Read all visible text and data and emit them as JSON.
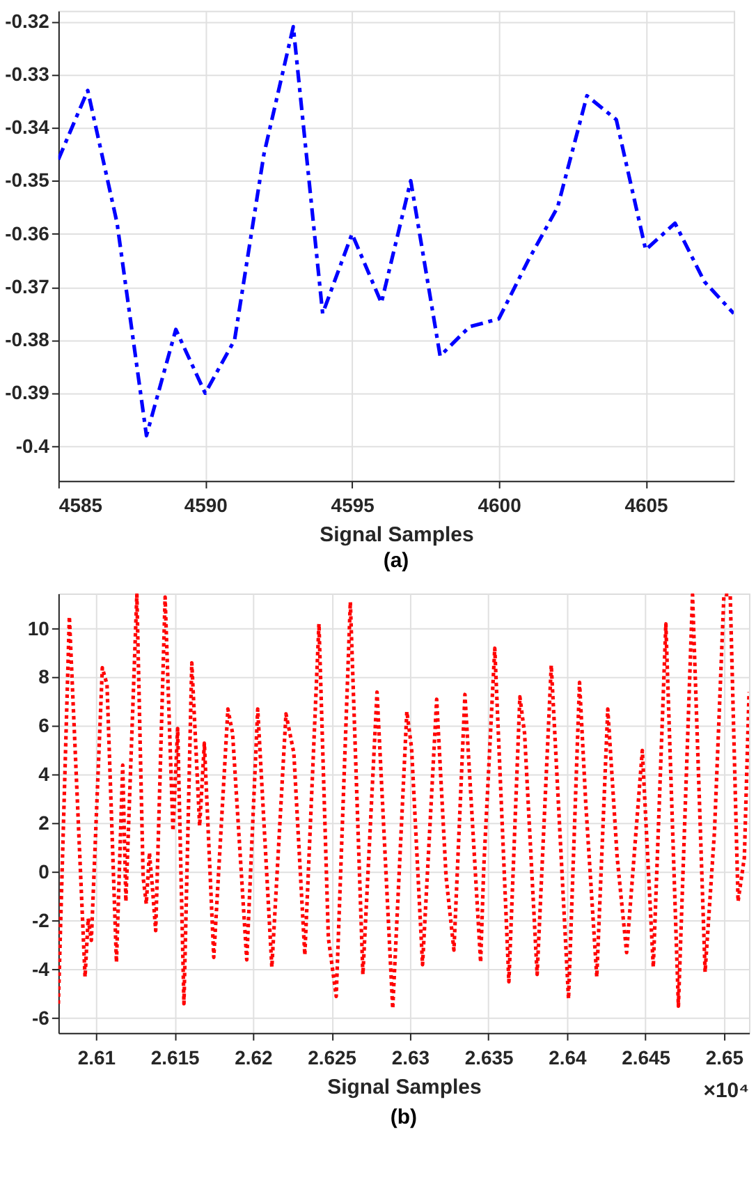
{
  "chart_data": [
    {
      "type": "line",
      "title": "(a)",
      "xlabel": "Signal Samples",
      "x": [
        4585,
        4586,
        4587,
        4588,
        4589,
        4590,
        4591,
        4592,
        4593,
        4594,
        4595,
        4596,
        4597,
        4598,
        4599,
        4600,
        4601,
        4602,
        4603,
        4604,
        4605,
        4606,
        4607,
        4608
      ],
      "series": [
        {
          "color": "#0000ff",
          "line_style": "dashed",
          "values": [
            -0.346,
            -0.333,
            -0.358,
            -0.398,
            -0.378,
            -0.39,
            -0.38,
            -0.345,
            -0.321,
            -0.375,
            -0.36,
            -0.373,
            -0.35,
            -0.383,
            -0.3775,
            -0.376,
            -0.365,
            -0.355,
            -0.334,
            -0.3385,
            -0.363,
            -0.358,
            -0.369,
            -0.375
          ]
        }
      ],
      "xlim": [
        4585,
        4608
      ],
      "ylim": [
        -0.4065,
        -0.318
      ],
      "xticks": [
        4585,
        4590,
        4595,
        4600,
        4605
      ],
      "yticks": [
        -0.4,
        -0.39,
        -0.38,
        -0.37,
        -0.36,
        -0.35,
        -0.34,
        -0.33,
        -0.32
      ],
      "grid": true,
      "marker": "none"
    },
    {
      "type": "line",
      "title": "(b)",
      "xlabel": "Signal Samples",
      "annotations": [
        "×10⁴"
      ],
      "x": [
        2.6076,
        2.6083,
        2.6093,
        2.6095,
        2.6097,
        2.6104,
        2.6107,
        2.6113,
        2.6117,
        2.6119,
        2.6126,
        2.613,
        2.6132,
        2.6134,
        2.6136,
        2.6138,
        2.6144,
        2.6149,
        2.6152,
        2.6156,
        2.6161,
        2.6166,
        2.6169,
        2.6175,
        2.6184,
        2.6187,
        2.6196,
        2.6203,
        2.6212,
        2.6221,
        2.6226,
        2.6233,
        2.6242,
        2.6248,
        2.6253,
        2.6262,
        2.627,
        2.6279,
        2.6289,
        2.6298,
        2.6301,
        2.6308,
        2.6317,
        2.6323,
        2.6328,
        2.6335,
        2.6345,
        2.6347,
        2.6354,
        2.6363,
        2.637,
        2.6373,
        2.6381,
        2.639,
        2.6401,
        2.6408,
        2.6412,
        2.6419,
        2.6426,
        2.6432,
        2.6438,
        2.6448,
        2.6455,
        2.6463,
        2.6471,
        2.648,
        2.6488,
        2.6494,
        2.65,
        2.6504,
        2.6509,
        2.6513,
        2.6516
      ],
      "series": [
        {
          "color": "#ff0000",
          "line_style": "dotted",
          "values": [
            -5.4,
            10.5,
            -4.3,
            -1.9,
            -2.8,
            8.4,
            7.7,
            -3.7,
            4.4,
            -1.2,
            11.4,
            -0.2,
            -1.3,
            0.8,
            -0.7,
            -2.4,
            11.3,
            1.7,
            5.9,
            -5.4,
            8.6,
            1.9,
            5.3,
            -3.5,
            6.7,
            5.7,
            -3.6,
            6.7,
            -3.9,
            6.5,
            4.9,
            -3.4,
            10.2,
            -2.7,
            -5.1,
            11.1,
            -4.2,
            7.4,
            -5.6,
            6.6,
            5.1,
            -3.8,
            7.1,
            -0.2,
            -3.2,
            7.3,
            -3.7,
            0.2,
            9.2,
            -4.5,
            7.2,
            5.7,
            -4.2,
            8.5,
            -5.2,
            7.8,
            2.8,
            -4.3,
            6.7,
            0.6,
            -3.3,
            5.0,
            -3.9,
            10.2,
            -5.5,
            11.4,
            -4.1,
            1.7,
            11.4,
            11.4,
            -1.2,
            0.6,
            7.4
          ]
        }
      ],
      "xlim": [
        2.6076,
        2.6516
      ],
      "ylim": [
        -6.6,
        11.45
      ],
      "xticks": [
        2.61,
        2.615,
        2.62,
        2.625,
        2.63,
        2.635,
        2.64,
        2.645,
        2.65
      ],
      "yticks": [
        -6,
        -4,
        -2,
        0,
        2,
        4,
        6,
        8,
        10
      ],
      "grid": true,
      "marker": "none"
    }
  ]
}
